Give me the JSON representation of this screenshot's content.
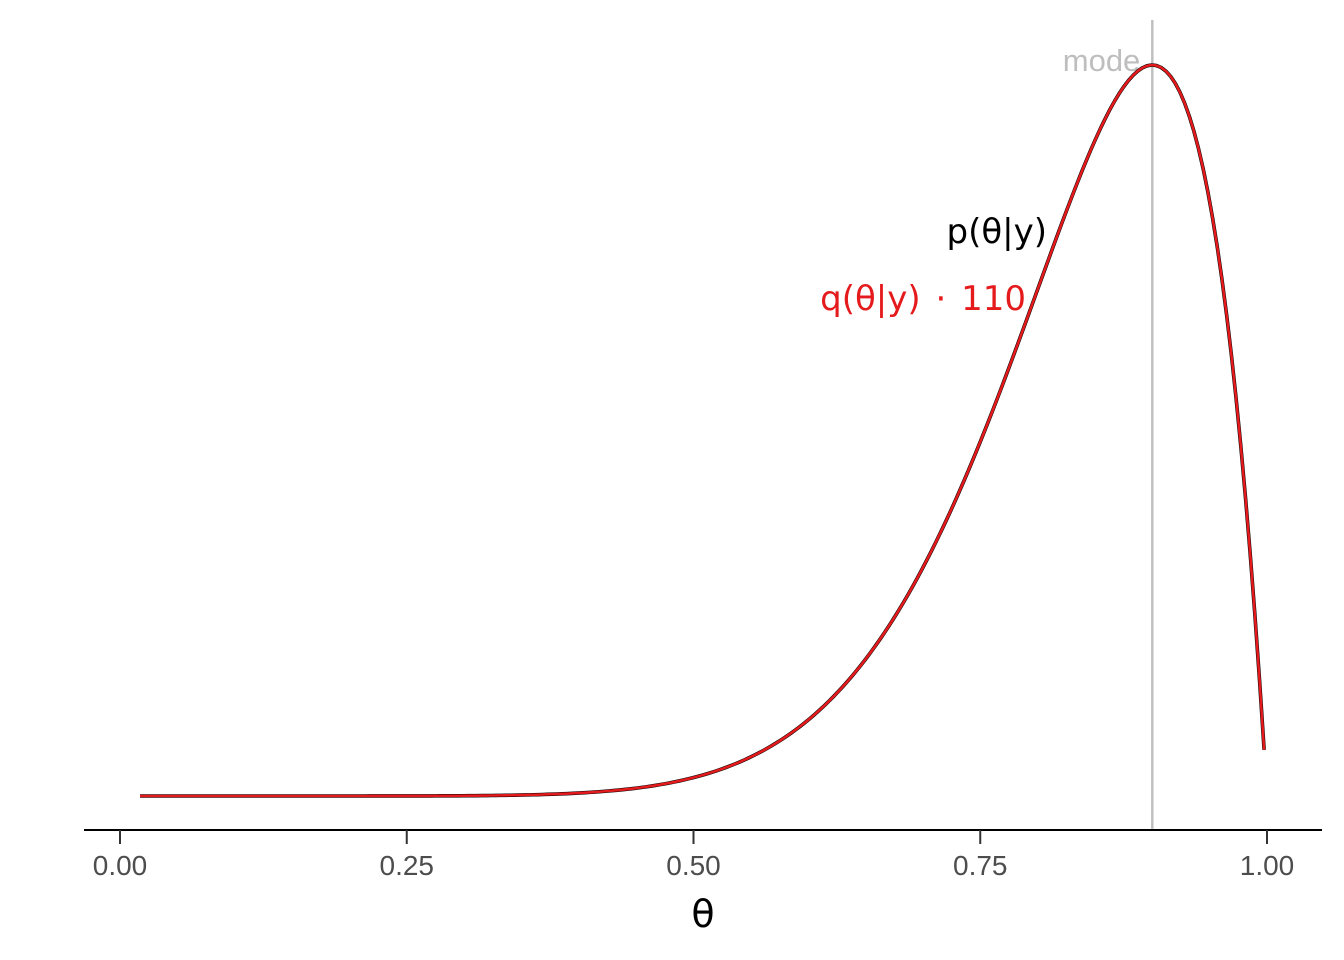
{
  "chart_data": {
    "type": "line",
    "title": "",
    "xlabel": "θ",
    "ylabel": "",
    "xlim": [
      -0.03,
      1.05
    ],
    "ylim": [
      0,
      1
    ],
    "x_ticks": [
      0.0,
      0.25,
      0.5,
      0.75,
      1.0
    ],
    "x_tick_labels": [
      "0.00",
      "0.25",
      "0.50",
      "0.75",
      "1.00"
    ],
    "grid": false,
    "legend": "none",
    "series": [
      {
        "name": "p(θ|y)",
        "color": "#000000",
        "shape": {
          "a": 10,
          "b": 2
        },
        "x_range": [
          0.0175,
          0.9975
        ],
        "note_label": "p(θ|y)"
      },
      {
        "name": "q(θ|y)·110",
        "color": "#e41a1c",
        "shape": {
          "a": 10,
          "b": 2
        },
        "x_range": [
          0.0175,
          0.9975
        ],
        "note_label_main": "q(θ|y)",
        "note_label_op": "·",
        "note_label_factor": "110"
      }
    ],
    "vline": {
      "x": 0.9,
      "label": "mode",
      "color": "#bebebe"
    }
  }
}
